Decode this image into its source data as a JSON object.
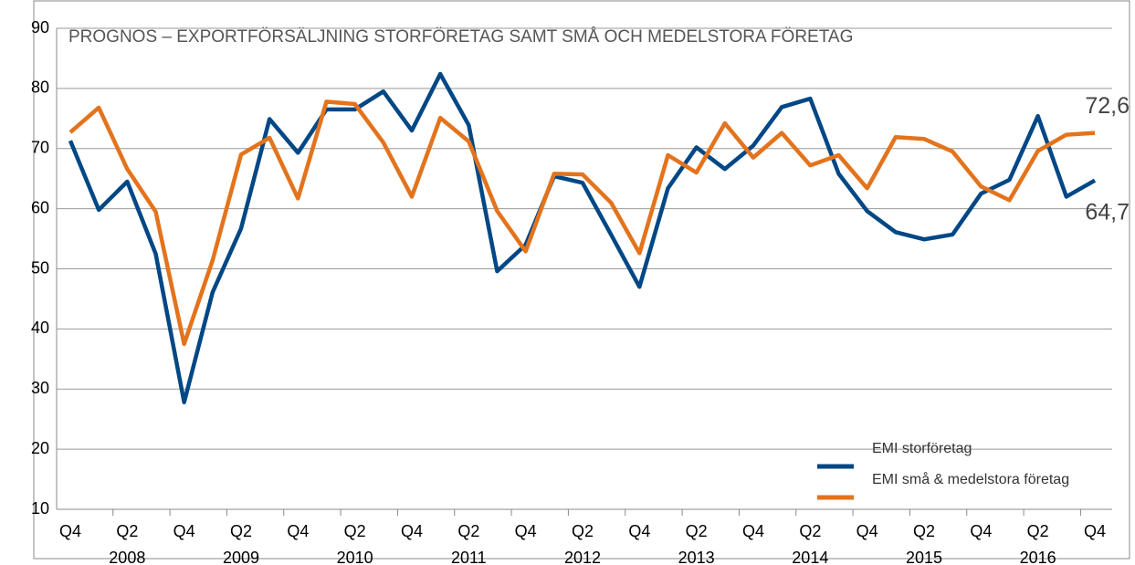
{
  "chart_data": {
    "type": "line",
    "title": "PROGNOS – EXPORTFÖRSÄLJNING STORFÖRETAG SAMT SMÅ OCH MEDELSTORA FÖRETAG",
    "categories": [
      "Q4",
      null,
      "Q2",
      null,
      "Q4",
      null,
      "Q2",
      null,
      "Q4",
      null,
      "Q2",
      null,
      "Q4",
      null,
      "Q2",
      null,
      "Q4",
      null,
      "Q2",
      null,
      "Q4",
      null,
      "Q2",
      null,
      "Q4",
      null,
      "Q2",
      null,
      "Q4",
      null,
      "Q2",
      null,
      "Q4",
      null,
      "Q2",
      null,
      "Q4"
    ],
    "years": [
      "2008",
      "2009",
      "2010",
      "2011",
      "2012",
      "2013",
      "2014",
      "2015",
      "2016"
    ],
    "series": [
      {
        "name": "EMI storföretag",
        "color": "#004785",
        "values": [
          71.3,
          59.8,
          64.5,
          52.5,
          27.8,
          46.1,
          56.7,
          74.9,
          69.3,
          76.5,
          76.5,
          79.5,
          73.0,
          82.4,
          73.9,
          49.6,
          54.0,
          65.4,
          64.3,
          55.7,
          47.0,
          63.4,
          70.2,
          66.6,
          70.5,
          76.9,
          78.3,
          65.8,
          59.6,
          56.1,
          54.9,
          55.7,
          62.5,
          64.8,
          75.4,
          62.0,
          64.7
        ],
        "value_labels": [
          null,
          null,
          null,
          null,
          null,
          null,
          null,
          null,
          null,
          null,
          null,
          null,
          null,
          null,
          null,
          null,
          null,
          null,
          null,
          null,
          null,
          null,
          null,
          null,
          null,
          null,
          null,
          null,
          null,
          null,
          null,
          null,
          null,
          null,
          null,
          null,
          "64,7"
        ]
      },
      {
        "name": "EMI små & medelstora företag",
        "color": "#e3731c",
        "values": [
          72.7,
          76.8,
          66.6,
          59.5,
          37.5,
          51.4,
          69.0,
          71.8,
          61.7,
          77.8,
          77.4,
          71.0,
          62.0,
          75.1,
          71.2,
          59.6,
          52.9,
          65.8,
          65.7,
          61.0,
          52.6,
          68.9,
          66.0,
          74.2,
          68.5,
          72.6,
          67.2,
          68.9,
          63.4,
          71.9,
          71.6,
          69.5,
          63.7,
          61.4,
          69.6,
          72.3,
          72.6
        ],
        "value_labels": [
          null,
          null,
          null,
          null,
          null,
          null,
          null,
          null,
          null,
          null,
          null,
          null,
          null,
          null,
          null,
          null,
          null,
          null,
          null,
          null,
          null,
          null,
          null,
          null,
          null,
          null,
          null,
          null,
          null,
          null,
          null,
          null,
          null,
          null,
          null,
          null,
          "72,6"
        ]
      }
    ],
    "ylim": [
      10,
      90
    ],
    "yticks": [
      10,
      20,
      30,
      40,
      50,
      60,
      70,
      80,
      90
    ],
    "grid": true,
    "legend": "lower right"
  }
}
